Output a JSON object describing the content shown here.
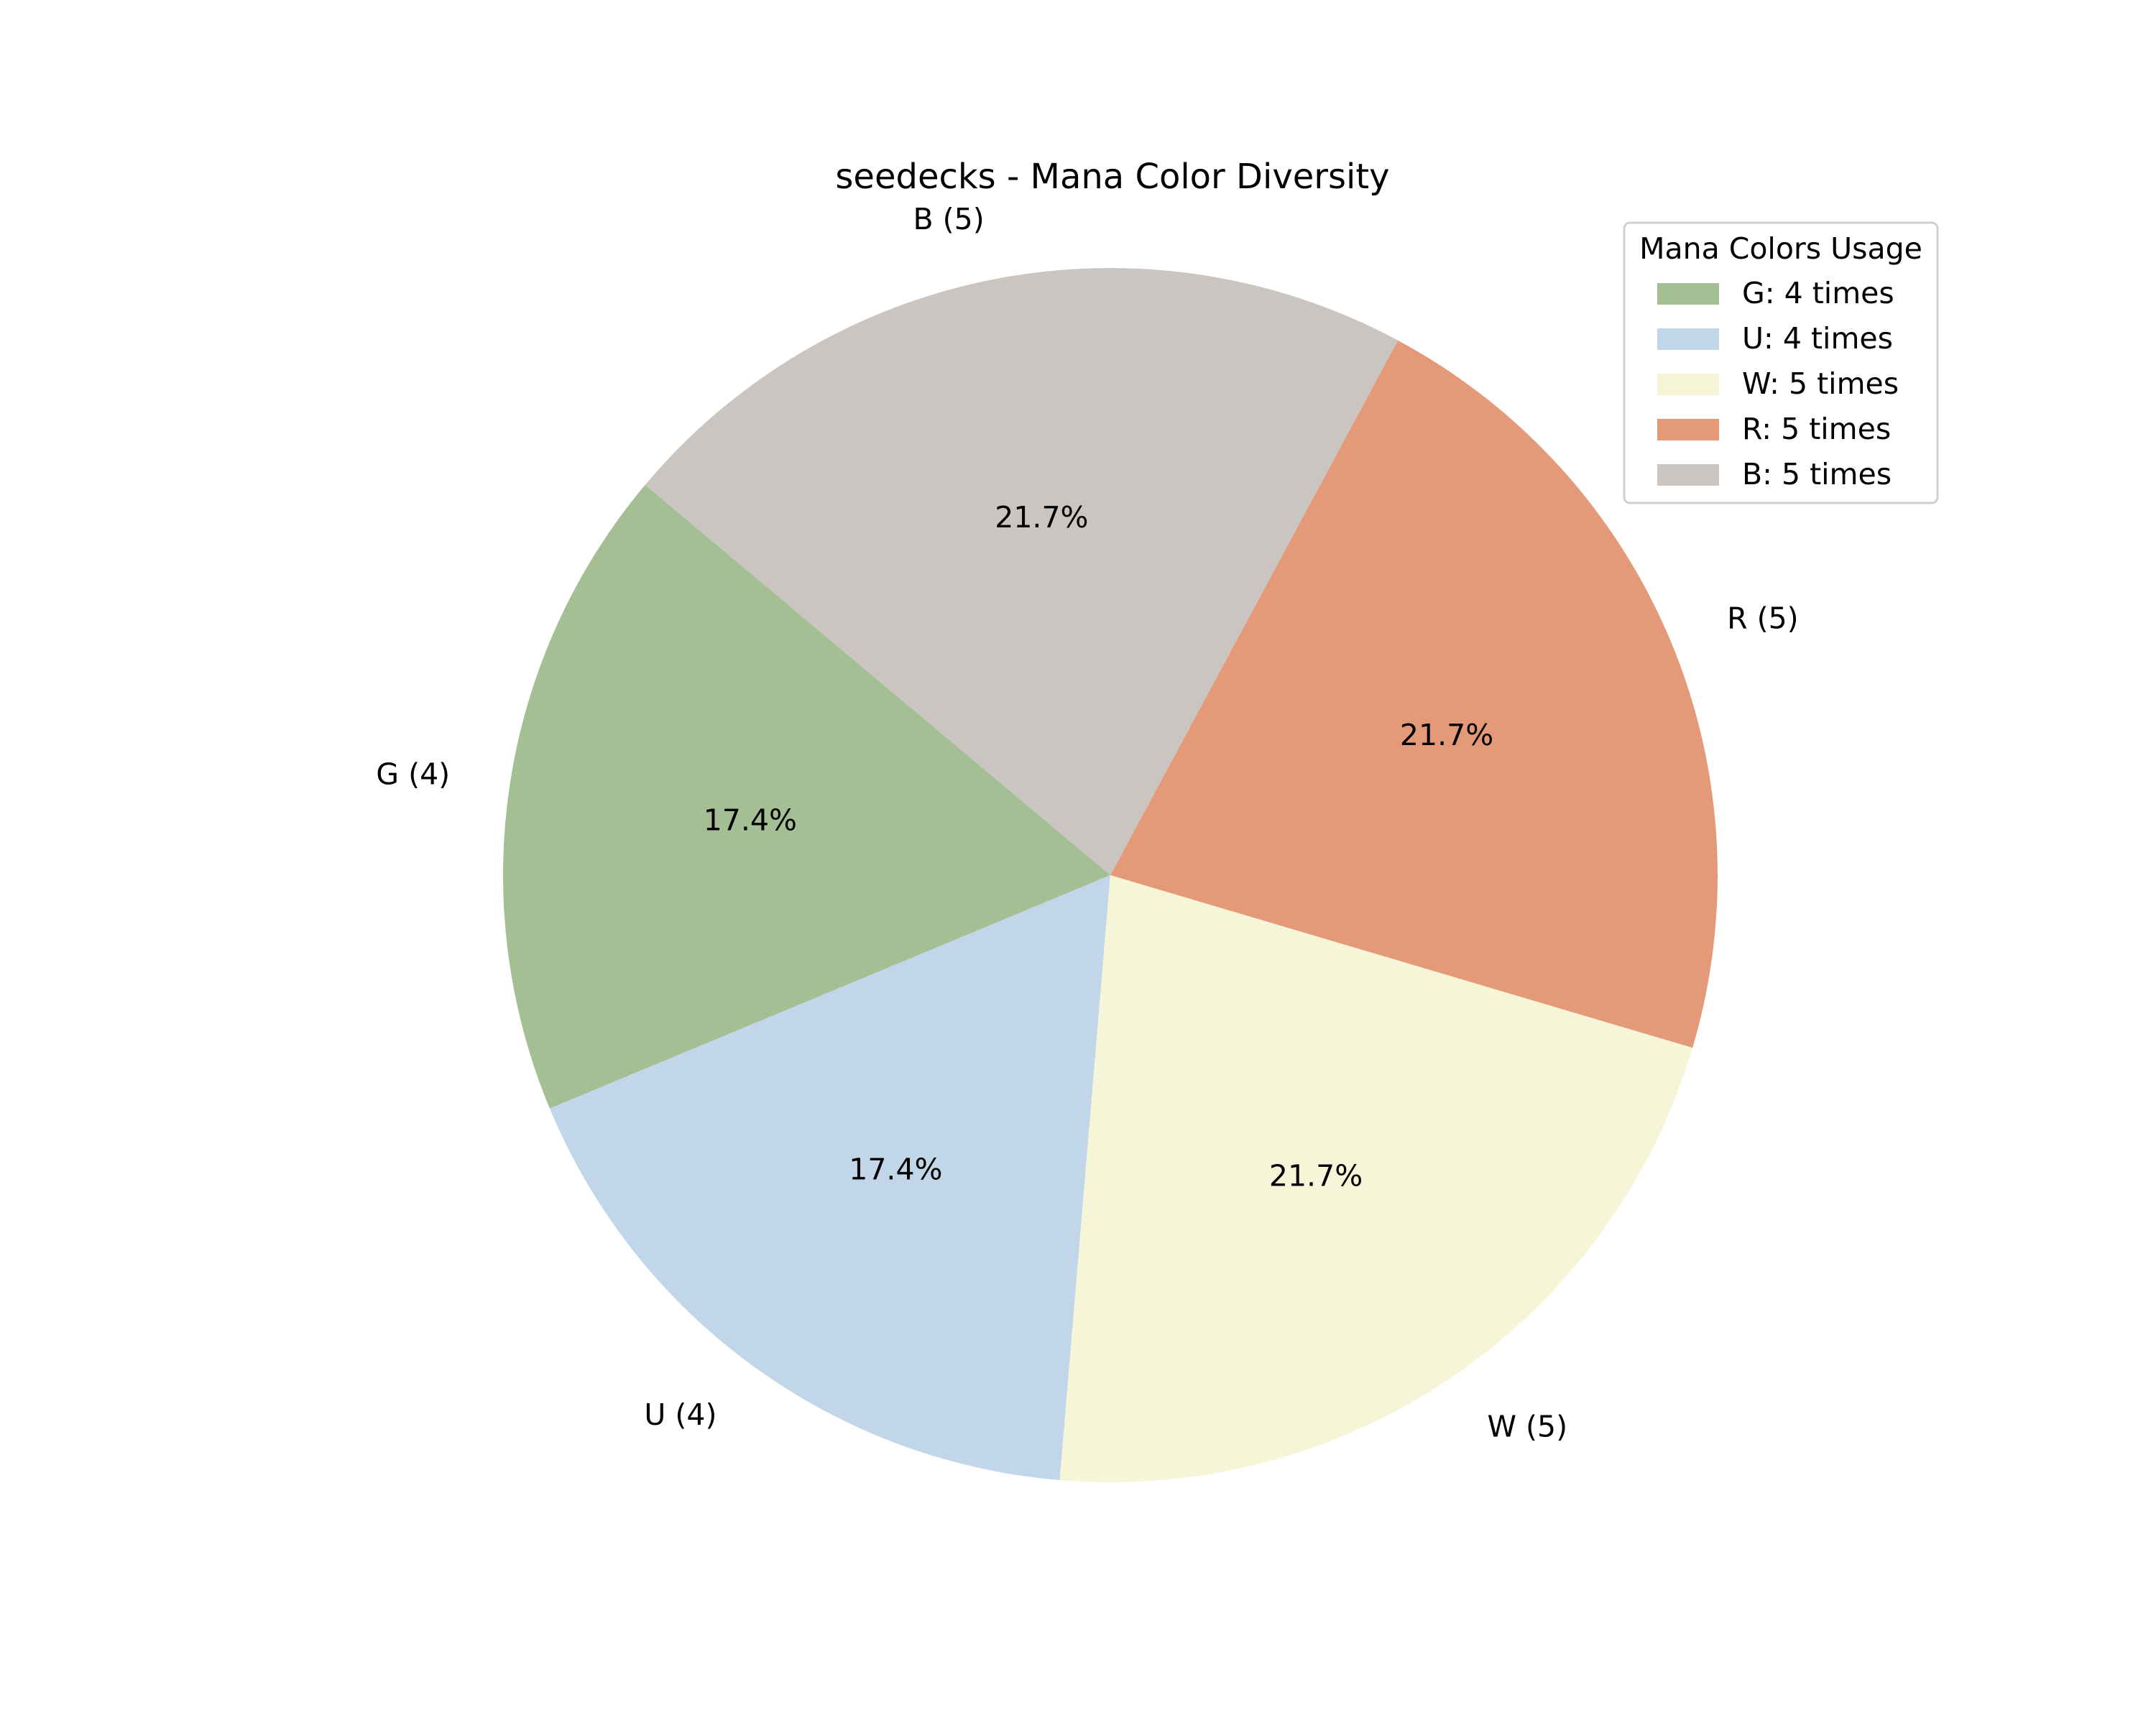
{
  "chart_data": {
    "type": "pie",
    "title": "seedecks - Mana Color Diversity",
    "categories": [
      "G",
      "U",
      "W",
      "R",
      "B"
    ],
    "values": [
      4,
      4,
      5,
      5,
      5
    ],
    "slice_labels": [
      "G (4)",
      "U (4)",
      "W (5)",
      "R (5)",
      "B (5)"
    ],
    "percent_labels": [
      "17.4%",
      "17.4%",
      "21.7%",
      "21.7%",
      "21.7%"
    ],
    "colors": [
      "#a3bf93",
      "#c1d6e8",
      "#f6f5d7",
      "#e49a78",
      "#cac5c0"
    ],
    "start_angle_deg": 140,
    "direction": "counterclockwise",
    "legend": {
      "title": "Mana Colors Usage",
      "placement": "top-right",
      "entries": [
        "G: 4 times",
        "U: 4 times",
        "W: 5 times",
        "R: 5 times",
        "B: 5 times"
      ]
    }
  }
}
